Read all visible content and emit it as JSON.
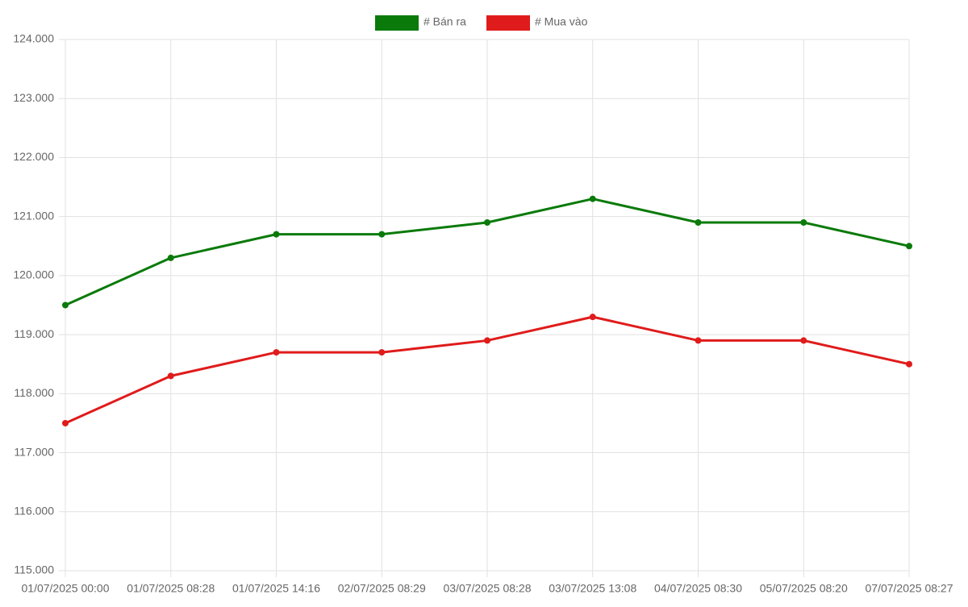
{
  "chart_data": {
    "type": "line",
    "categories": [
      "01/07/2025 00:00",
      "01/07/2025 08:28",
      "01/07/2025 14:16",
      "02/07/2025 08:29",
      "03/07/2025 08:28",
      "03/07/2025 13:08",
      "04/07/2025 08:30",
      "05/07/2025 08:20",
      "07/07/2025 08:27"
    ],
    "series": [
      {
        "name": "# Bán ra",
        "color": "#0a7a0a",
        "values": [
          119500,
          120300,
          120700,
          120700,
          120900,
          121300,
          120900,
          120900,
          120500
        ]
      },
      {
        "name": "# Mua vào",
        "color": "#e01b1b",
        "values": [
          117500,
          118300,
          118700,
          118700,
          118900,
          119300,
          118900,
          118900,
          118500
        ]
      }
    ],
    "ylim": [
      115000,
      124000
    ],
    "yticks": [
      {
        "value": 115000,
        "label": "115.000"
      },
      {
        "value": 116000,
        "label": "116.000"
      },
      {
        "value": 117000,
        "label": "117.000"
      },
      {
        "value": 118000,
        "label": "118.000"
      },
      {
        "value": 119000,
        "label": "119.000"
      },
      {
        "value": 120000,
        "label": "120.000"
      },
      {
        "value": 121000,
        "label": "121.000"
      },
      {
        "value": 122000,
        "label": "122.000"
      },
      {
        "value": 123000,
        "label": "123.000"
      },
      {
        "value": 124000,
        "label": "124.000"
      }
    ],
    "grid": true,
    "legend": "top"
  }
}
